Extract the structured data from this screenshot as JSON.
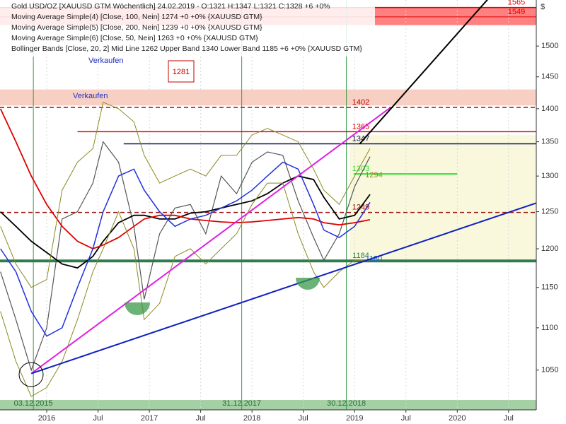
{
  "chart_data": {
    "type": "line",
    "legend": [
      "Gold USD/OZ [XAUUSD GTM  Wöchentlich] 24.02.2019 - O:1321 H:1347 L:1321 C:1328 +6 +0%",
      "Moving Average Simple(4) [Close, 100, Nein] 1274 +0 +0% {XAUUSD GTM}",
      "Moving Average Simple(5) [Close, 200, Nein] 1239 +0 +0% {XAUUSD GTM}",
      "Moving Average Simple(6) [Close, 50, Nein] 1263 +0 +0% {XAUUSD GTM}",
      "Bollinger Bands [Close, 20, 2] Mid Line 1262 Upper Band 1340 Lower Band 1185 +6 +0% {XAUUSD GTM}"
    ],
    "currency_symbol": "$",
    "annotations": [
      "Verkaufen",
      "Verkaufen",
      "1281"
    ],
    "date_labels": [
      {
        "x": 2015.87,
        "label": "03.12.2015"
      },
      {
        "x": 2017.9,
        "label": "31.12.2017"
      },
      {
        "x": 2018.92,
        "label": "30.12.2018"
      }
    ],
    "log_scale": true,
    "xlim": [
      2015.545,
      2020.77
    ],
    "ylim": [
      1005,
      1578
    ],
    "xticks": [
      2016,
      {
        "value": 2016.5,
        "label": "Jul"
      },
      2017,
      {
        "value": 2017.5,
        "label": "Jul"
      },
      2018,
      {
        "value": 2018.5,
        "label": "Jul"
      },
      2019,
      {
        "value": 2019.5,
        "label": "Jul"
      },
      2020,
      {
        "value": 2020.5,
        "label": "Jul"
      }
    ],
    "yticks": [
      1050,
      1100,
      1150,
      1200,
      1250,
      1300,
      1350,
      1400,
      1450,
      1500
    ],
    "x": [
      2015.55,
      2015.7,
      2015.85,
      2016.0,
      2016.15,
      2016.3,
      2016.45,
      2016.55,
      2016.7,
      2016.85,
      2016.95,
      2017.1,
      2017.25,
      2017.4,
      2017.55,
      2017.7,
      2017.85,
      2018.0,
      2018.15,
      2018.3,
      2018.45,
      2018.6,
      2018.7,
      2018.85,
      2019.0,
      2019.15
    ],
    "series": [
      {
        "name": "Gold",
        "color": "#555555",
        "width": 1.2,
        "values": [
          1170,
          1110,
          1050,
          1100,
          1240,
          1250,
          1290,
          1350,
          1320,
          1230,
          1135,
          1220,
          1255,
          1260,
          1220,
          1300,
          1275,
          1320,
          1335,
          1330,
          1265,
          1215,
          1185,
          1220,
          1285,
          1328
        ]
      },
      {
        "name": "SMA 100",
        "color": "#000000",
        "width": 1.8,
        "values": [
          1250,
          1230,
          1210,
          1195,
          1180,
          1175,
          1190,
          1210,
          1235,
          1245,
          1245,
          1240,
          1240,
          1248,
          1250,
          1255,
          1260,
          1265,
          1275,
          1290,
          1300,
          1295,
          1270,
          1240,
          1245,
          1274
        ]
      },
      {
        "name": "SMA 200",
        "color": "#e00000",
        "width": 1.8,
        "values": [
          1400,
          1350,
          1300,
          1260,
          1230,
          1210,
          1200,
          1205,
          1215,
          1230,
          1240,
          1245,
          1245,
          1240,
          1238,
          1236,
          1235,
          1236,
          1238,
          1240,
          1242,
          1240,
          1235,
          1232,
          1235,
          1239
        ]
      },
      {
        "name": "SMA 50",
        "color": "#2030e0",
        "width": 1.5,
        "values": [
          1200,
          1170,
          1120,
          1090,
          1100,
          1150,
          1200,
          1250,
          1300,
          1310,
          1280,
          1250,
          1230,
          1240,
          1245,
          1255,
          1265,
          1280,
          1300,
          1320,
          1310,
          1260,
          1225,
          1215,
          1230,
          1263
        ]
      },
      {
        "name": "Upper Band",
        "color": "#8a8a20",
        "width": 1,
        "values": [
          1230,
          1180,
          1150,
          1160,
          1280,
          1320,
          1340,
          1410,
          1400,
          1380,
          1330,
          1290,
          1300,
          1310,
          1300,
          1330,
          1330,
          1360,
          1370,
          1360,
          1350,
          1310,
          1280,
          1260,
          1300,
          1340
        ]
      },
      {
        "name": "Lower Band",
        "color": "#8a8a20",
        "width": 1,
        "values": [
          1120,
          1060,
          1020,
          1030,
          1060,
          1110,
          1170,
          1200,
          1250,
          1200,
          1110,
          1130,
          1190,
          1200,
          1180,
          1200,
          1220,
          1260,
          1290,
          1290,
          1220,
          1170,
          1150,
          1170,
          1185,
          1185
        ]
      }
    ],
    "zones": [
      {
        "y": [
          1535,
          1565
        ],
        "x": [
          2015.545,
          2020.77
        ],
        "color": "#ff6060"
      },
      {
        "y": [
          1405,
          1430
        ],
        "x": [
          2015.545,
          2020.77
        ],
        "color": "#f6c4b4"
      },
      {
        "y": [
          1185,
          1360
        ],
        "x": [
          2018.95,
          2020.77
        ],
        "color": "#f8f6d4"
      },
      {
        "y": [
          1005,
          1016
        ],
        "x": [
          2015.545,
          2020.77
        ],
        "color": "#8fc48f"
      }
    ],
    "levels": [
      {
        "value": 1565,
        "x": [
          2015.545,
          2020.77
        ],
        "color": "#e00000",
        "dash": false,
        "width": 1.5
      },
      {
        "value": 1549,
        "x": [
          2015.545,
          2020.77
        ],
        "color": "#e00000",
        "dash": false,
        "width": 1
      },
      {
        "value": 1402,
        "x": [
          2015.545,
          2020.77
        ],
        "color": "#c00000",
        "dash": true,
        "width": 1.5
      },
      {
        "value": 1365,
        "x": [
          2016.3,
          2020.77
        ],
        "color": "#e00000",
        "dash": false,
        "width": 1.5
      },
      {
        "value": 1347,
        "x": [
          2016.75,
          2020.77
        ],
        "color": "#101060",
        "dash": false,
        "width": 1.5
      },
      {
        "value": 1303,
        "x": [
          2018.99,
          2020.0
        ],
        "color": "#30e030",
        "dash": false,
        "width": 2
      },
      {
        "value": 1294,
        "x": [
          2019.05,
          2019.2
        ],
        "color": "#8a8a20",
        "dash": false,
        "width": 0
      },
      {
        "value": 1249,
        "x": [
          2015.545,
          2020.77
        ],
        "color": "#a01010",
        "dash": true,
        "width": 1.5
      },
      {
        "value": 1184,
        "x": [
          2015.545,
          2020.77
        ],
        "color": "#2e7d4f",
        "dash": false,
        "width": 4
      },
      {
        "value": 1180,
        "x": [
          2019.05,
          2019.2
        ],
        "color": "#2060c0",
        "dash": false,
        "width": 0
      }
    ],
    "trendlines": [
      {
        "color": "#e020e0",
        "points": [
          [
            2015.85,
            1046
          ],
          [
            2019.35,
            1402
          ]
        ]
      },
      {
        "color": "#1020c0",
        "points": [
          [
            2015.85,
            1046
          ],
          [
            2020.77,
            1262
          ]
        ]
      },
      {
        "color": "#000000",
        "points": [
          [
            2019.05,
            1347
          ],
          [
            2020.4,
            1600
          ]
        ]
      }
    ]
  }
}
